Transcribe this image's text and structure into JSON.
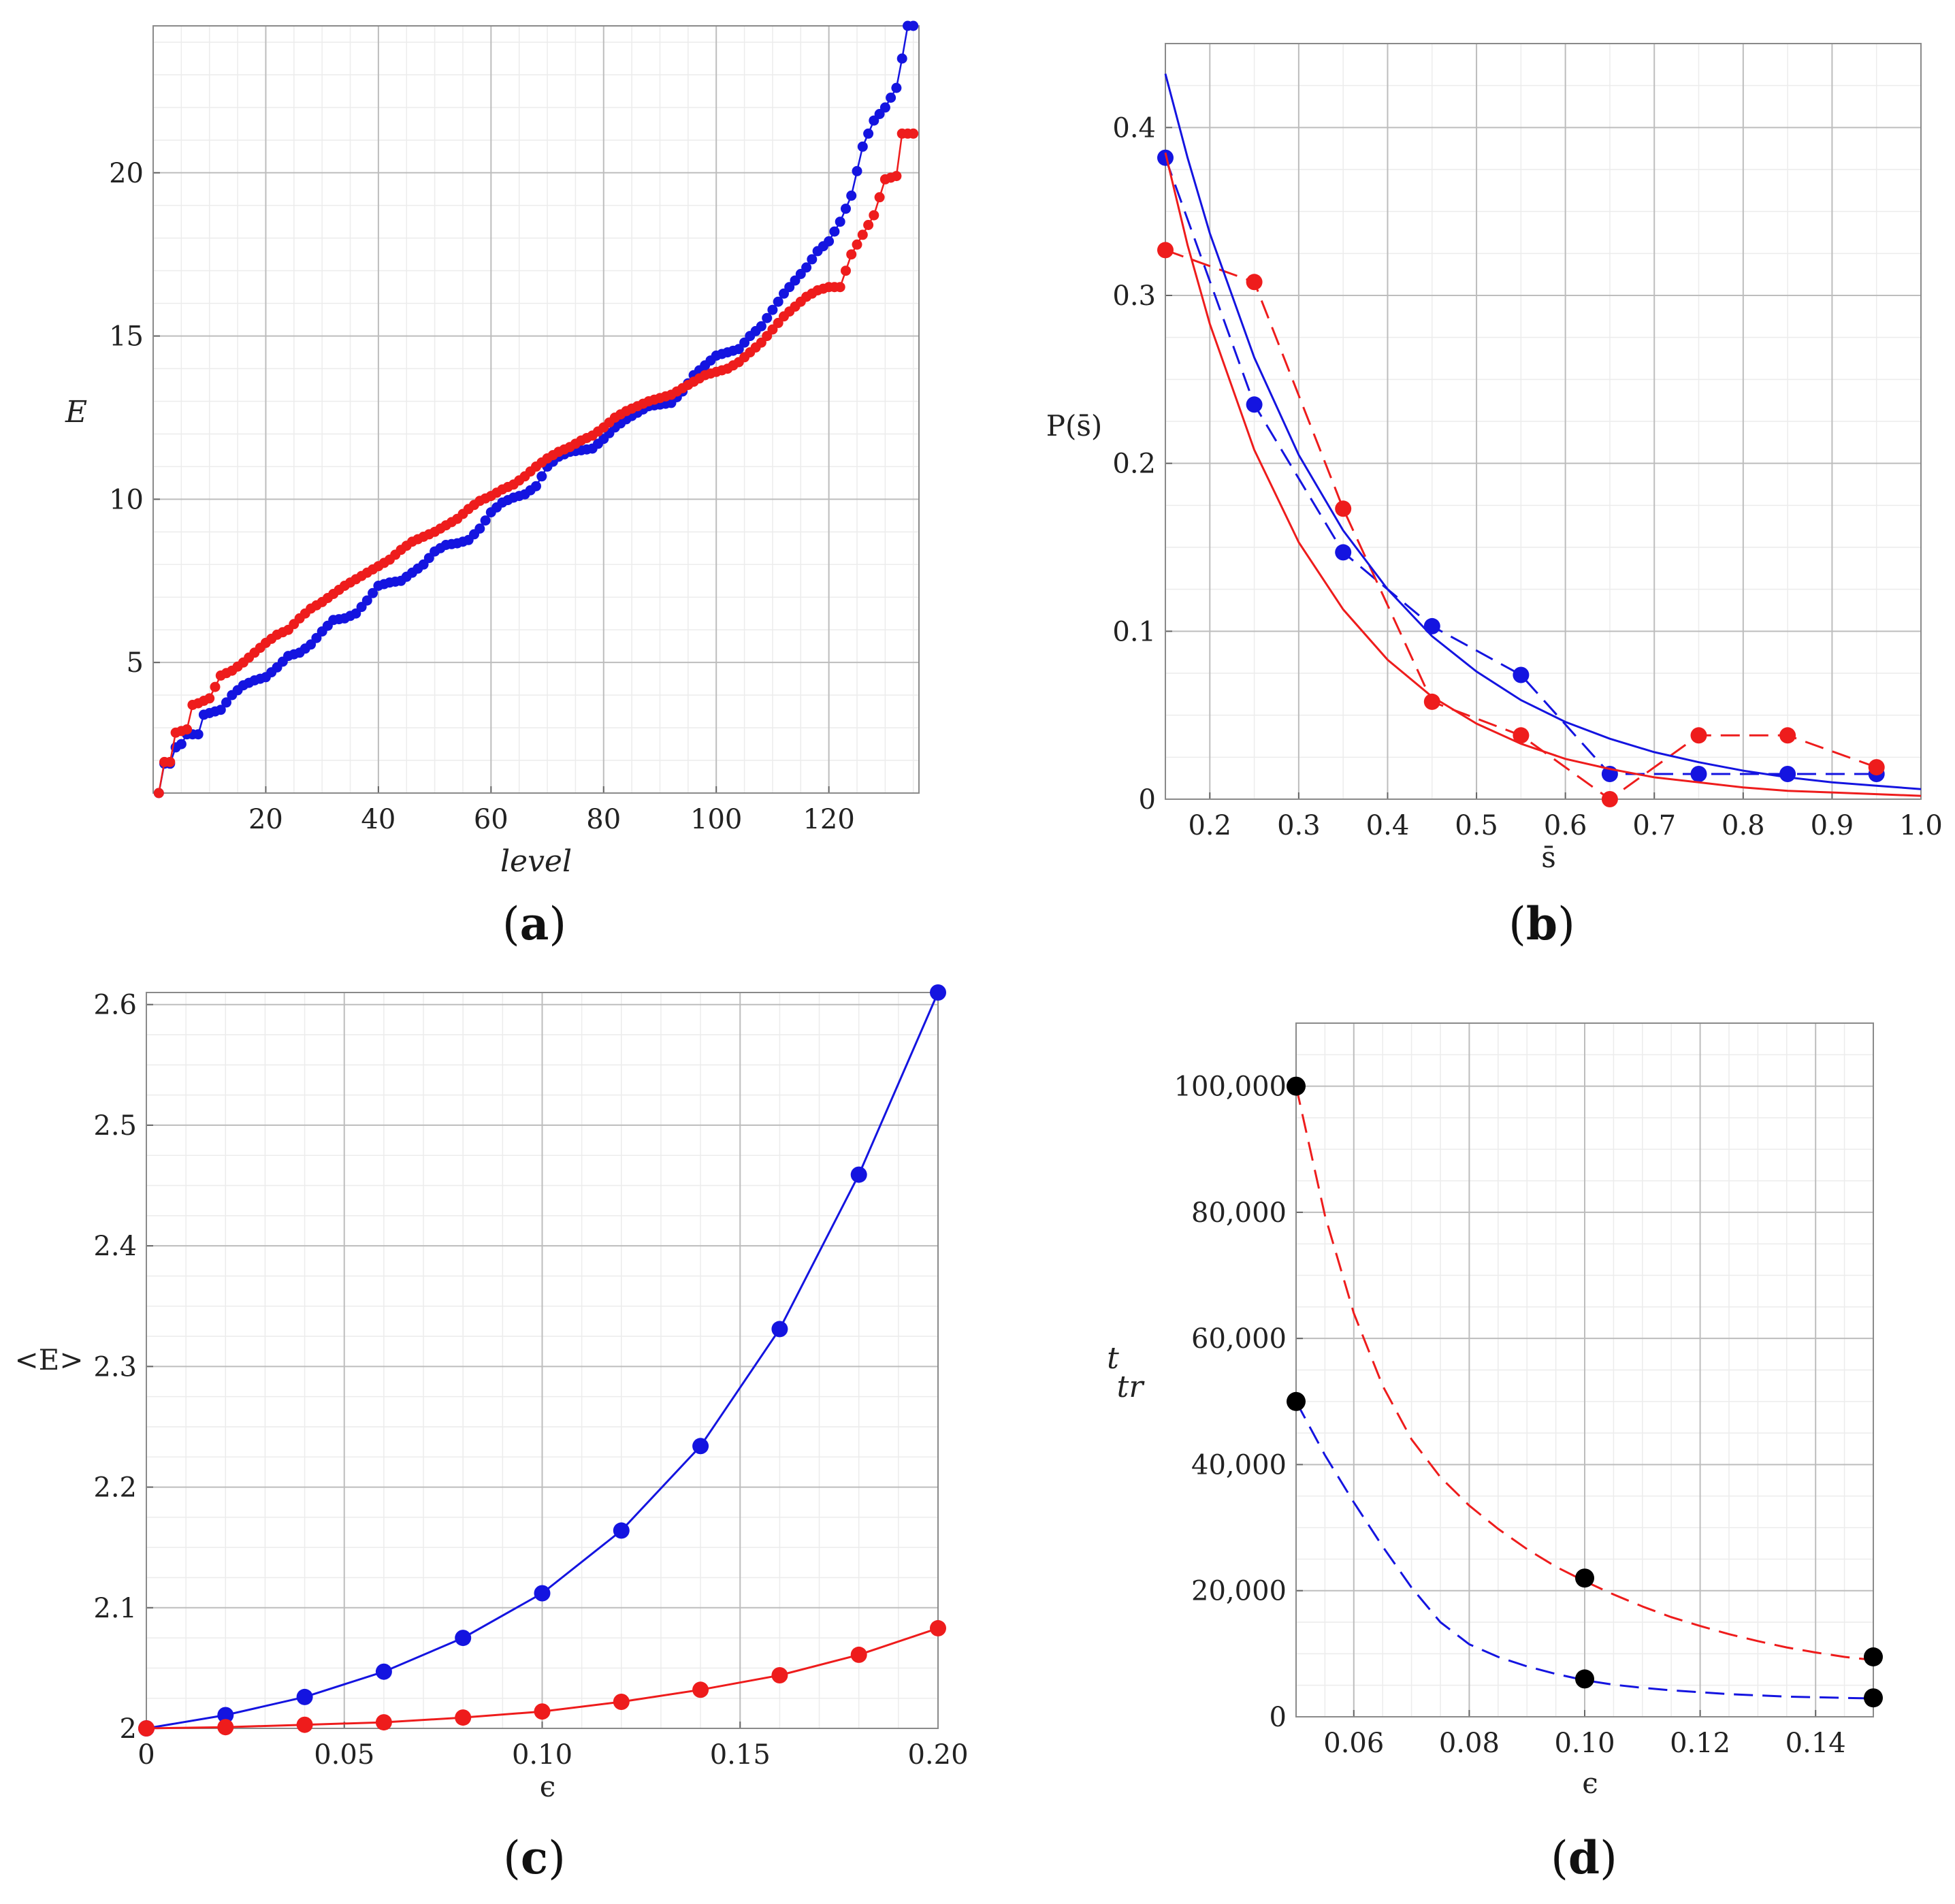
{
  "colors": {
    "red": "#ee1c1c",
    "blue": "#1414e0",
    "black": "#000000"
  },
  "chart_data": [
    {
      "panel": "a",
      "panel_label": "a",
      "type": "scatter",
      "title": "",
      "xlabel": "level",
      "ylabel": "E",
      "xlim": [
        0,
        136
      ],
      "ylim": [
        1,
        24.5
      ],
      "xticks": [
        20,
        40,
        60,
        80,
        100,
        120
      ],
      "yticks": [
        5,
        10,
        15,
        20
      ],
      "series": [
        {
          "name": "blue",
          "color": "#1414e0",
          "style": "markers+solid",
          "knots": [
            [
              1,
              1.0
            ],
            [
              2,
              1.9
            ],
            [
              3,
              1.9
            ],
            [
              4,
              2.4
            ],
            [
              5,
              2.5
            ],
            [
              6,
              2.8
            ],
            [
              8,
              2.8
            ],
            [
              9,
              3.4
            ],
            [
              12,
              3.55
            ],
            [
              14,
              4.0
            ],
            [
              16,
              4.3
            ],
            [
              18,
              4.45
            ],
            [
              20,
              4.55
            ],
            [
              22,
              4.85
            ],
            [
              24,
              5.2
            ],
            [
              26,
              5.3
            ],
            [
              28,
              5.55
            ],
            [
              30,
              5.95
            ],
            [
              32,
              6.3
            ],
            [
              34,
              6.35
            ],
            [
              36,
              6.5
            ],
            [
              38,
              6.9
            ],
            [
              40,
              7.35
            ],
            [
              42,
              7.45
            ],
            [
              44,
              7.5
            ],
            [
              46,
              7.75
            ],
            [
              48,
              8.0
            ],
            [
              50,
              8.4
            ],
            [
              52,
              8.6
            ],
            [
              54,
              8.65
            ],
            [
              56,
              8.75
            ],
            [
              58,
              9.1
            ],
            [
              60,
              9.6
            ],
            [
              62,
              9.9
            ],
            [
              64,
              10.05
            ],
            [
              66,
              10.15
            ],
            [
              68,
              10.4
            ],
            [
              70,
              11.0
            ],
            [
              72,
              11.3
            ],
            [
              74,
              11.45
            ],
            [
              76,
              11.5
            ],
            [
              78,
              11.55
            ],
            [
              80,
              11.85
            ],
            [
              82,
              12.2
            ],
            [
              84,
              12.45
            ],
            [
              86,
              12.65
            ],
            [
              88,
              12.85
            ],
            [
              90,
              12.9
            ],
            [
              92,
              12.95
            ],
            [
              94,
              13.3
            ],
            [
              96,
              13.8
            ],
            [
              98,
              14.1
            ],
            [
              100,
              14.4
            ],
            [
              102,
              14.5
            ],
            [
              104,
              14.6
            ],
            [
              106,
              15.0
            ],
            [
              108,
              15.3
            ],
            [
              110,
              15.8
            ],
            [
              112,
              16.3
            ],
            [
              114,
              16.7
            ],
            [
              116,
              17.1
            ],
            [
              118,
              17.6
            ],
            [
              120,
              17.9
            ],
            [
              122,
              18.5
            ],
            [
              124,
              19.3
            ],
            [
              126,
              20.8
            ],
            [
              128,
              21.6
            ],
            [
              130,
              22.0
            ],
            [
              132,
              22.6
            ],
            [
              133,
              23.5
            ],
            [
              134,
              24.5
            ],
            [
              135,
              24.5
            ]
          ]
        },
        {
          "name": "red",
          "color": "#ee1c1c",
          "style": "markers+solid",
          "knots": [
            [
              1,
              1.0
            ],
            [
              2,
              1.95
            ],
            [
              3,
              1.95
            ],
            [
              4,
              2.85
            ],
            [
              5,
              2.9
            ],
            [
              6,
              2.95
            ],
            [
              7,
              3.7
            ],
            [
              8,
              3.75
            ],
            [
              10,
              3.9
            ],
            [
              12,
              4.6
            ],
            [
              14,
              4.75
            ],
            [
              16,
              5.0
            ],
            [
              18,
              5.3
            ],
            [
              20,
              5.6
            ],
            [
              22,
              5.85
            ],
            [
              24,
              6.0
            ],
            [
              26,
              6.35
            ],
            [
              28,
              6.65
            ],
            [
              30,
              6.85
            ],
            [
              32,
              7.1
            ],
            [
              34,
              7.35
            ],
            [
              36,
              7.55
            ],
            [
              38,
              7.75
            ],
            [
              40,
              7.95
            ],
            [
              42,
              8.15
            ],
            [
              44,
              8.45
            ],
            [
              46,
              8.7
            ],
            [
              48,
              8.85
            ],
            [
              50,
              9.0
            ],
            [
              52,
              9.2
            ],
            [
              54,
              9.4
            ],
            [
              56,
              9.7
            ],
            [
              58,
              9.95
            ],
            [
              60,
              10.1
            ],
            [
              62,
              10.3
            ],
            [
              64,
              10.45
            ],
            [
              66,
              10.7
            ],
            [
              68,
              11.0
            ],
            [
              70,
              11.25
            ],
            [
              72,
              11.45
            ],
            [
              74,
              11.6
            ],
            [
              76,
              11.8
            ],
            [
              78,
              11.95
            ],
            [
              80,
              12.2
            ],
            [
              82,
              12.5
            ],
            [
              84,
              12.7
            ],
            [
              86,
              12.85
            ],
            [
              88,
              13.0
            ],
            [
              90,
              13.1
            ],
            [
              92,
              13.2
            ],
            [
              94,
              13.4
            ],
            [
              96,
              13.6
            ],
            [
              98,
              13.8
            ],
            [
              100,
              13.9
            ],
            [
              102,
              14.0
            ],
            [
              104,
              14.2
            ],
            [
              106,
              14.5
            ],
            [
              108,
              14.8
            ],
            [
              110,
              15.2
            ],
            [
              112,
              15.6
            ],
            [
              114,
              15.9
            ],
            [
              116,
              16.2
            ],
            [
              118,
              16.4
            ],
            [
              120,
              16.5
            ],
            [
              122,
              16.5
            ],
            [
              124,
              17.5
            ],
            [
              126,
              18.1
            ],
            [
              128,
              18.7
            ],
            [
              130,
              19.8
            ],
            [
              132,
              19.9
            ],
            [
              133,
              21.2
            ],
            [
              135,
              21.2
            ]
          ]
        }
      ]
    },
    {
      "panel": "b",
      "panel_label": "b",
      "type": "line",
      "title": "",
      "xlabel": "s̄",
      "ylabel": "P(s̄)",
      "xlim": [
        0.15,
        1.0
      ],
      "ylim": [
        0,
        0.45
      ],
      "xticks": [
        0.2,
        0.3,
        0.4,
        0.5,
        0.6,
        0.7,
        0.8,
        0.9,
        1.0
      ],
      "xtick_labels": [
        "0.2",
        "0.3",
        "0.4",
        "0.5",
        "0.6",
        "0.7",
        "0.8",
        "0.9",
        "1.0"
      ],
      "yticks": [
        0,
        0.1,
        0.2,
        0.3,
        0.4
      ],
      "ytick_labels": [
        "0",
        "0.1",
        "0.2",
        "0.3",
        "0.4"
      ],
      "series": [
        {
          "name": "blue histogram",
          "color": "#1414e0",
          "style": "dashed+markers",
          "x": [
            0.15,
            0.25,
            0.35,
            0.45,
            0.55,
            0.65,
            0.75,
            0.85,
            0.95
          ],
          "y": [
            0.382,
            0.235,
            0.147,
            0.103,
            0.074,
            0.015,
            0.015,
            0.015,
            0.015
          ]
        },
        {
          "name": "red histogram",
          "color": "#ee1c1c",
          "style": "dashed+markers",
          "x": [
            0.15,
            0.25,
            0.35,
            0.45,
            0.55,
            0.65,
            0.75,
            0.85,
            0.95
          ],
          "y": [
            0.327,
            0.308,
            0.173,
            0.058,
            0.038,
            0.0,
            0.038,
            0.038,
            0.019
          ]
        },
        {
          "name": "blue fit",
          "color": "#1414e0",
          "style": "solid",
          "x": [
            0.15,
            0.175,
            0.2,
            0.25,
            0.3,
            0.35,
            0.4,
            0.45,
            0.5,
            0.55,
            0.6,
            0.65,
            0.7,
            0.75,
            0.8,
            0.85,
            0.9,
            0.95,
            1.0
          ],
          "y": [
            0.432,
            0.382,
            0.337,
            0.263,
            0.205,
            0.16,
            0.125,
            0.097,
            0.076,
            0.059,
            0.046,
            0.036,
            0.028,
            0.022,
            0.017,
            0.013,
            0.01,
            0.008,
            0.006
          ]
        },
        {
          "name": "red fit",
          "color": "#ee1c1c",
          "style": "solid",
          "x": [
            0.15,
            0.175,
            0.2,
            0.25,
            0.3,
            0.35,
            0.4,
            0.45,
            0.5,
            0.55,
            0.6,
            0.65,
            0.7,
            0.75,
            0.8,
            0.85,
            0.9,
            0.95,
            1.0
          ],
          "y": [
            0.385,
            0.33,
            0.283,
            0.208,
            0.153,
            0.113,
            0.083,
            0.061,
            0.045,
            0.033,
            0.024,
            0.018,
            0.013,
            0.01,
            0.007,
            0.005,
            0.004,
            0.003,
            0.002
          ]
        }
      ]
    },
    {
      "panel": "c",
      "panel_label": "c",
      "type": "line",
      "title": "",
      "xlabel": "ϵ",
      "ylabel": "<E>",
      "xlim": [
        0,
        0.2
      ],
      "ylim": [
        2,
        2.61
      ],
      "xticks": [
        0,
        0.05,
        0.1,
        0.15,
        0.2
      ],
      "xtick_labels": [
        "0",
        "0.05",
        "0.10",
        "0.15",
        "0.20"
      ],
      "yticks": [
        2,
        2.1,
        2.2,
        2.3,
        2.4,
        2.5,
        2.6
      ],
      "ytick_labels": [
        "2",
        "2.1",
        "2.2",
        "2.3",
        "2.4",
        "2.5",
        "2.6"
      ],
      "series": [
        {
          "name": "blue",
          "color": "#1414e0",
          "style": "solid+markers",
          "x": [
            0,
            0.02,
            0.04,
            0.06,
            0.08,
            0.1,
            0.12,
            0.14,
            0.16,
            0.18,
            0.2
          ],
          "y": [
            2.0,
            2.011,
            2.026,
            2.047,
            2.075,
            2.112,
            2.164,
            2.234,
            2.331,
            2.459,
            2.61
          ]
        },
        {
          "name": "red",
          "color": "#ee1c1c",
          "style": "solid+markers",
          "x": [
            0,
            0.02,
            0.04,
            0.06,
            0.08,
            0.1,
            0.12,
            0.14,
            0.16,
            0.18,
            0.2
          ],
          "y": [
            2.0,
            2.001,
            2.003,
            2.005,
            2.009,
            2.014,
            2.022,
            2.032,
            2.044,
            2.061,
            2.083
          ]
        }
      ]
    },
    {
      "panel": "d",
      "panel_label": "d",
      "type": "line",
      "title": "",
      "xlabel": "ϵ",
      "ylabel_main": "t",
      "ylabel_sub": "tr",
      "xlim": [
        0.05,
        0.15
      ],
      "ylim": [
        0,
        110000
      ],
      "xticks": [
        0.06,
        0.08,
        0.1,
        0.12,
        0.14
      ],
      "xtick_labels": [
        "0.06",
        "0.08",
        "0.10",
        "0.12",
        "0.14"
      ],
      "yticks": [
        0,
        20000,
        40000,
        60000,
        80000,
        100000
      ],
      "ytick_labels": [
        "0",
        "20,000",
        "40,000",
        "60,000",
        "80,000",
        "100,000"
      ],
      "series": [
        {
          "name": "red fit",
          "color": "#ee1c1c",
          "style": "dashed",
          "x": [
            0.05,
            0.055,
            0.06,
            0.065,
            0.07,
            0.075,
            0.08,
            0.085,
            0.09,
            0.095,
            0.1,
            0.105,
            0.11,
            0.115,
            0.12,
            0.125,
            0.13,
            0.135,
            0.14,
            0.145,
            0.15
          ],
          "y": [
            100000,
            79500,
            64000,
            52500,
            44000,
            38000,
            33500,
            29800,
            26600,
            23800,
            21500,
            19400,
            17500,
            15800,
            14400,
            13100,
            12000,
            11000,
            10200,
            9500,
            9000
          ]
        },
        {
          "name": "blue fit",
          "color": "#1414e0",
          "style": "dashed",
          "x": [
            0.05,
            0.055,
            0.06,
            0.065,
            0.07,
            0.075,
            0.08,
            0.085,
            0.09,
            0.095,
            0.1,
            0.105,
            0.11,
            0.115,
            0.12,
            0.125,
            0.13,
            0.135,
            0.14,
            0.145,
            0.15
          ],
          "y": [
            50000,
            41500,
            34000,
            27000,
            20500,
            15000,
            11500,
            9500,
            8000,
            6800,
            5800,
            5100,
            4600,
            4200,
            3900,
            3600,
            3400,
            3200,
            3100,
            3000,
            2900
          ]
        },
        {
          "name": "data points",
          "color": "#000000",
          "style": "markers",
          "x": [
            0.05,
            0.05,
            0.1,
            0.1,
            0.15,
            0.15
          ],
          "y": [
            100000,
            50000,
            22000,
            6000,
            9500,
            3000
          ]
        }
      ]
    }
  ]
}
